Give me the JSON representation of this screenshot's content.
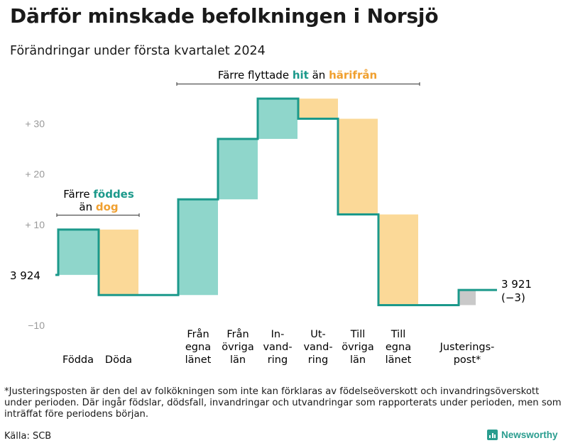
{
  "title": "Därför minskade befolkningen i Norsjö",
  "subtitle": "Förändringar under första kvartalet 2024",
  "colors": {
    "teal": "#1b998b",
    "teal_fill": "#8fd6cb",
    "orange": "#f0a030",
    "orange_fill": "#fbd998",
    "gray_fill": "#c9c9c9",
    "axis_text": "#9a9a9a"
  },
  "chart_data": {
    "type": "waterfall",
    "baseline": 3924,
    "ylim": [
      -11,
      36
    ],
    "yticks": [
      {
        "value": 30,
        "label": "+  30"
      },
      {
        "value": 20,
        "label": "+  20"
      },
      {
        "value": 10,
        "label": "+  10"
      },
      {
        "value": -10,
        "label": "−10"
      }
    ],
    "steps": [
      {
        "label": [
          "Födda"
        ],
        "delta": 9,
        "kind": "in"
      },
      {
        "label": [
          "Döda"
        ],
        "delta": -13,
        "kind": "out"
      },
      {
        "label": [
          "Från",
          "egna",
          "länet"
        ],
        "delta": 19,
        "kind": "in"
      },
      {
        "label": [
          "Från",
          "övriga",
          "län"
        ],
        "delta": 12,
        "kind": "in"
      },
      {
        "label": [
          "In-",
          "vand-",
          "ring"
        ],
        "delta": 8,
        "kind": "in"
      },
      {
        "label": [
          "Ut-",
          "vand-",
          "ring"
        ],
        "delta": -4,
        "kind": "out"
      },
      {
        "label": [
          "Till",
          "övriga",
          "län"
        ],
        "delta": -19,
        "kind": "out"
      },
      {
        "label": [
          "Till",
          "egna",
          "länet"
        ],
        "delta": -18,
        "kind": "out"
      },
      {
        "label": [
          "Justerings-",
          "post*"
        ],
        "delta": 3,
        "kind": "adjust"
      }
    ],
    "start_label": "3 924",
    "end_label": "3 921",
    "end_change": "(−3)",
    "annotations": {
      "births": {
        "line1_prefix": "Färre",
        "line1_highlight": "föddes",
        "line2_prefix": "än",
        "line2_highlight": "dog"
      },
      "moves": {
        "prefix": "Färre flyttade",
        "highlight1": "hit",
        "middle": "än",
        "highlight2": "härifrån"
      }
    }
  },
  "footnote": "*Justeringsposten är den del av folkökningen som inte kan förklaras av födelseöverskott och invandringsöverskott under perioden. Där ingår födslar, dödsfall, invandringar och utvandringar som rapporterats under perioden, men som inträffat före periodens början.",
  "source": "Källa: SCB",
  "brand": "Newsworthy"
}
